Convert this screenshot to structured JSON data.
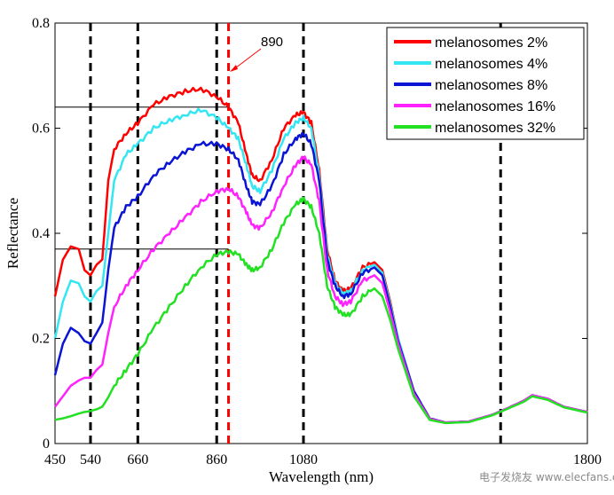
{
  "chart_data": {
    "type": "line",
    "xlabel": "Wavelength (nm)",
    "ylabel": "Reflectance",
    "xlim": [
      450,
      1800
    ],
    "ylim": [
      0,
      0.8
    ],
    "x_ticks": [
      450,
      540,
      660,
      860,
      1080,
      1800
    ],
    "x_tick_labels": [
      "450",
      "540",
      "660",
      "860",
      "1080",
      "1800"
    ],
    "y_ticks": [
      0,
      0.2,
      0.4,
      0.6,
      0.8
    ],
    "y_tick_labels": [
      "0",
      "0.2",
      "0.4",
      "0.6",
      "0.8"
    ],
    "grid": false,
    "legend_position": "top-right",
    "x": [
      450,
      470,
      490,
      510,
      525,
      540,
      555,
      570,
      585,
      600,
      630,
      660,
      700,
      740,
      780,
      820,
      860,
      890,
      915,
      935,
      950,
      970,
      1000,
      1030,
      1060,
      1080,
      1100,
      1120,
      1140,
      1160,
      1180,
      1200,
      1230,
      1260,
      1280,
      1300,
      1320,
      1360,
      1400,
      1440,
      1500,
      1560,
      1600,
      1640,
      1660,
      1700,
      1740,
      1800
    ],
    "series": [
      {
        "name": "melanosomes 2%",
        "color": "#ff0000",
        "values": [
          0.28,
          0.35,
          0.375,
          0.37,
          0.33,
          0.32,
          0.34,
          0.35,
          0.5,
          0.56,
          0.59,
          0.61,
          0.645,
          0.66,
          0.67,
          0.675,
          0.66,
          0.64,
          0.61,
          0.55,
          0.51,
          0.5,
          0.54,
          0.6,
          0.625,
          0.63,
          0.61,
          0.52,
          0.37,
          0.31,
          0.29,
          0.295,
          0.335,
          0.345,
          0.33,
          0.27,
          0.2,
          0.1,
          0.048,
          0.04,
          0.042,
          0.055,
          0.068,
          0.082,
          0.092,
          0.085,
          0.07,
          0.06
        ]
      },
      {
        "name": "melanosomes 4%",
        "color": "#33e6f2",
        "values": [
          0.2,
          0.27,
          0.31,
          0.305,
          0.28,
          0.27,
          0.29,
          0.3,
          0.4,
          0.5,
          0.55,
          0.57,
          0.6,
          0.615,
          0.625,
          0.635,
          0.62,
          0.6,
          0.58,
          0.53,
          0.49,
          0.48,
          0.52,
          0.58,
          0.61,
          0.62,
          0.6,
          0.51,
          0.36,
          0.305,
          0.285,
          0.29,
          0.33,
          0.34,
          0.325,
          0.265,
          0.2,
          0.1,
          0.048,
          0.04,
          0.042,
          0.055,
          0.068,
          0.082,
          0.092,
          0.085,
          0.07,
          0.06
        ]
      },
      {
        "name": "melanosomes 8%",
        "color": "#0a14d4",
        "values": [
          0.13,
          0.19,
          0.22,
          0.21,
          0.195,
          0.19,
          0.21,
          0.23,
          0.33,
          0.41,
          0.45,
          0.47,
          0.51,
          0.535,
          0.555,
          0.57,
          0.57,
          0.56,
          0.54,
          0.49,
          0.46,
          0.455,
          0.49,
          0.55,
          0.58,
          0.59,
          0.57,
          0.5,
          0.35,
          0.3,
          0.28,
          0.285,
          0.325,
          0.335,
          0.32,
          0.26,
          0.195,
          0.1,
          0.048,
          0.04,
          0.042,
          0.055,
          0.068,
          0.082,
          0.092,
          0.085,
          0.07,
          0.06
        ]
      },
      {
        "name": "melanosomes 16%",
        "color": "#ff22ff",
        "values": [
          0.07,
          0.09,
          0.11,
          0.12,
          0.125,
          0.125,
          0.14,
          0.15,
          0.21,
          0.26,
          0.3,
          0.33,
          0.37,
          0.4,
          0.43,
          0.46,
          0.48,
          0.485,
          0.47,
          0.44,
          0.415,
          0.41,
          0.44,
          0.49,
          0.53,
          0.545,
          0.53,
          0.46,
          0.33,
          0.28,
          0.265,
          0.27,
          0.31,
          0.32,
          0.305,
          0.25,
          0.19,
          0.095,
          0.047,
          0.04,
          0.042,
          0.055,
          0.068,
          0.082,
          0.092,
          0.085,
          0.07,
          0.06
        ]
      },
      {
        "name": "melanosomes 32%",
        "color": "#22e022",
        "values": [
          0.045,
          0.048,
          0.052,
          0.057,
          0.06,
          0.062,
          0.065,
          0.07,
          0.088,
          0.11,
          0.14,
          0.17,
          0.22,
          0.26,
          0.3,
          0.335,
          0.36,
          0.365,
          0.36,
          0.34,
          0.33,
          0.335,
          0.37,
          0.42,
          0.455,
          0.465,
          0.45,
          0.4,
          0.3,
          0.26,
          0.245,
          0.245,
          0.28,
          0.295,
          0.28,
          0.235,
          0.18,
          0.09,
          0.045,
          0.039,
          0.041,
          0.054,
          0.067,
          0.08,
          0.09,
          0.083,
          0.069,
          0.059
        ]
      }
    ],
    "vertical_dashed_lines": [
      {
        "x": 540,
        "color": "#000000"
      },
      {
        "x": 660,
        "color": "#000000"
      },
      {
        "x": 860,
        "color": "#000000"
      },
      {
        "x": 890,
        "color": "#ff0000"
      },
      {
        "x": 1080,
        "color": "#000000"
      },
      {
        "x": 1580,
        "color": "#000000"
      }
    ],
    "horizontal_lines": [
      {
        "y": 0.64,
        "x_from": 450,
        "x_to": 890
      },
      {
        "y": 0.37,
        "x_from": 450,
        "x_to": 890
      }
    ],
    "annotation": {
      "text": "890",
      "points_to_x": 890,
      "color": "#ff0000"
    }
  },
  "watermark": {
    "text": "电子发烧友 www.elecfans.com"
  }
}
